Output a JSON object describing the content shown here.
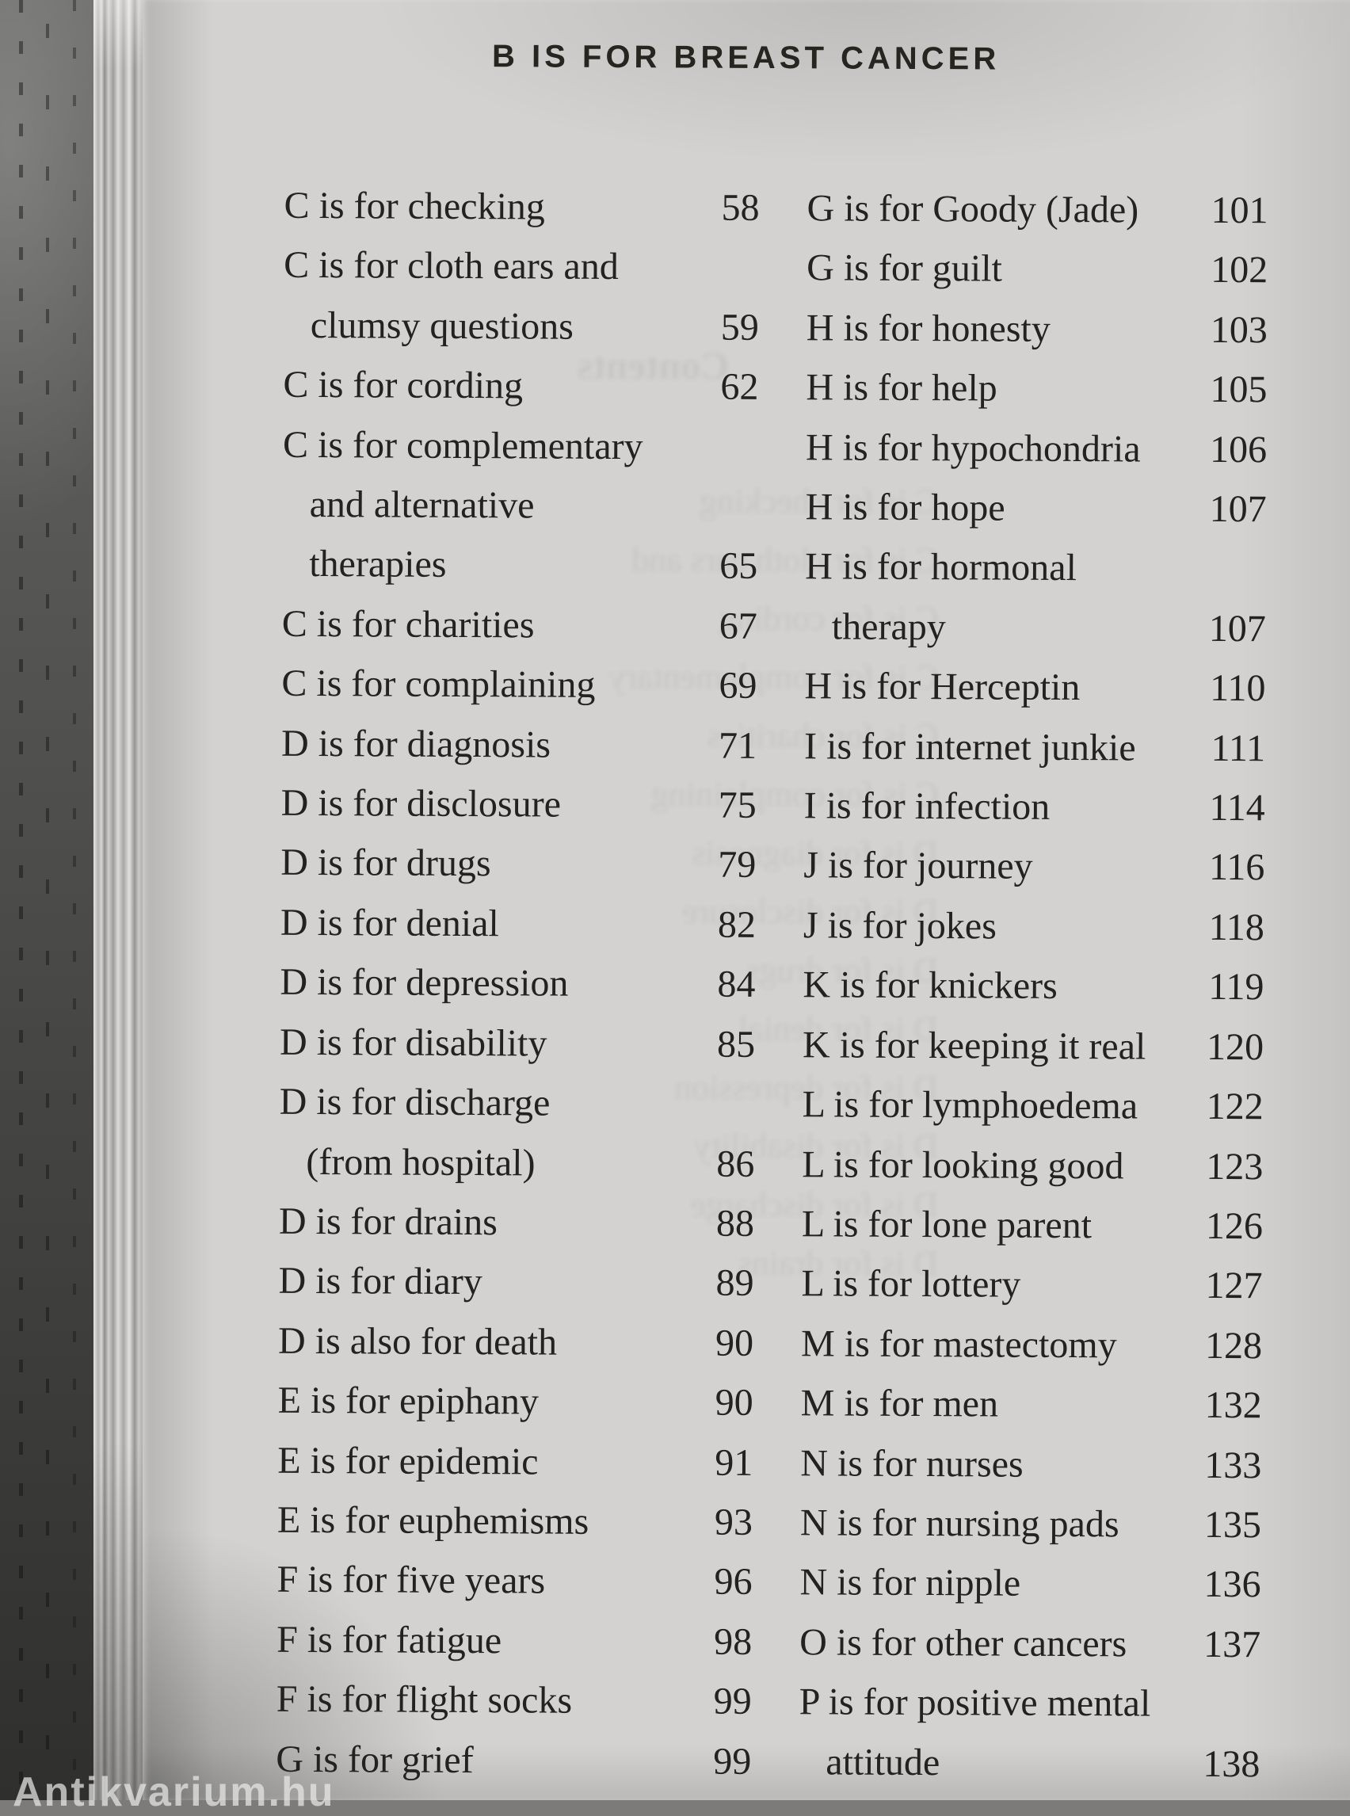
{
  "page": {
    "header": "B IS FOR BREAST CANCER",
    "watermark": "Antikvarium.hu",
    "ghost_heading": "Contents"
  },
  "toc": {
    "left": [
      {
        "lines": [
          "C is for checking"
        ],
        "page": "58"
      },
      {
        "lines": [
          "C is for cloth ears and",
          "clumsy questions"
        ],
        "page": "59"
      },
      {
        "lines": [
          "C is for cording"
        ],
        "page": "62"
      },
      {
        "lines": [
          "C is for complementary",
          "and alternative",
          "therapies"
        ],
        "page": "65"
      },
      {
        "lines": [
          "C is for charities"
        ],
        "page": "67"
      },
      {
        "lines": [
          "C is for complaining"
        ],
        "page": "69"
      },
      {
        "lines": [
          "D is for diagnosis"
        ],
        "page": "71"
      },
      {
        "lines": [
          "D is for disclosure"
        ],
        "page": "75"
      },
      {
        "lines": [
          "D is for drugs"
        ],
        "page": "79"
      },
      {
        "lines": [
          "D is for denial"
        ],
        "page": "82"
      },
      {
        "lines": [
          "D is for depression"
        ],
        "page": "84"
      },
      {
        "lines": [
          "D is for disability"
        ],
        "page": "85"
      },
      {
        "lines": [
          "D is for discharge",
          "(from hospital)"
        ],
        "page": "86"
      },
      {
        "lines": [
          "D is for drains"
        ],
        "page": "88"
      },
      {
        "lines": [
          "D is for diary"
        ],
        "page": "89"
      },
      {
        "lines": [
          "D is also for death"
        ],
        "page": "90"
      },
      {
        "lines": [
          "E is for epiphany"
        ],
        "page": "90"
      },
      {
        "lines": [
          "E is for epidemic"
        ],
        "page": "91"
      },
      {
        "lines": [
          "E is for euphemisms"
        ],
        "page": "93"
      },
      {
        "lines": [
          "F is for five years"
        ],
        "page": "96"
      },
      {
        "lines": [
          "F is for fatigue"
        ],
        "page": "98"
      },
      {
        "lines": [
          "F is for flight socks"
        ],
        "page": "99"
      },
      {
        "lines": [
          "G is for grief"
        ],
        "page": "99"
      }
    ],
    "right": [
      {
        "lines": [
          "G is for Goody (Jade)"
        ],
        "page": "101"
      },
      {
        "lines": [
          "G is for guilt"
        ],
        "page": "102"
      },
      {
        "lines": [
          "H is for honesty"
        ],
        "page": "103"
      },
      {
        "lines": [
          "H is for help"
        ],
        "page": "105"
      },
      {
        "lines": [
          "H is for hypochondria"
        ],
        "page": "106"
      },
      {
        "lines": [
          "H is for hope"
        ],
        "page": "107"
      },
      {
        "lines": [
          "H is for hormonal",
          "therapy"
        ],
        "page": "107"
      },
      {
        "lines": [
          "H is for Herceptin"
        ],
        "page": "110"
      },
      {
        "lines": [
          "I is for internet junkie"
        ],
        "page": "111"
      },
      {
        "lines": [
          "I is for infection"
        ],
        "page": "114"
      },
      {
        "lines": [
          "J is for journey"
        ],
        "page": "116"
      },
      {
        "lines": [
          "J is for jokes"
        ],
        "page": "118"
      },
      {
        "lines": [
          "K is for knickers"
        ],
        "page": "119"
      },
      {
        "lines": [
          "K is for keeping it real"
        ],
        "page": "120"
      },
      {
        "lines": [
          "L is for lymphoedema"
        ],
        "page": "122"
      },
      {
        "lines": [
          "L is for looking good"
        ],
        "page": "123"
      },
      {
        "lines": [
          "L is for lone parent"
        ],
        "page": "126"
      },
      {
        "lines": [
          "L is for lottery"
        ],
        "page": "127"
      },
      {
        "lines": [
          "M is for mastectomy"
        ],
        "page": "128"
      },
      {
        "lines": [
          "M is for men"
        ],
        "page": "132"
      },
      {
        "lines": [
          "N is for nurses"
        ],
        "page": "133"
      },
      {
        "lines": [
          "N is for nursing pads"
        ],
        "page": "135"
      },
      {
        "lines": [
          "N is for nipple"
        ],
        "page": "136"
      },
      {
        "lines": [
          "O is for other cancers"
        ],
        "page": "137"
      },
      {
        "lines": [
          "P is for positive mental",
          "attitude"
        ],
        "page": "138"
      }
    ]
  }
}
